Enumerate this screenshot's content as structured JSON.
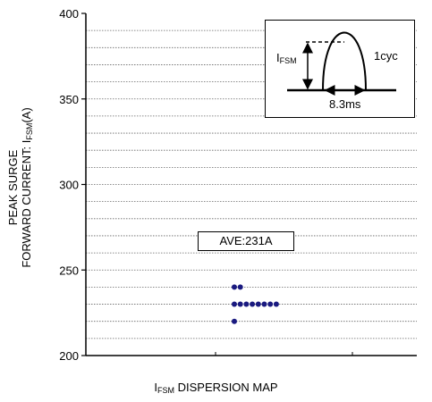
{
  "chart_data": {
    "type": "scatter",
    "title": "",
    "ylabel": {
      "prefix": "PEAK SURGE",
      "line2": "FORWARD CURRENT: I",
      "sub": "FSM",
      "suffix": "(A)"
    },
    "xlabel": {
      "main": "I",
      "sub": "FSM",
      "rest": " DISPERSION MAP"
    },
    "ylim": [
      200,
      400
    ],
    "yticks": [
      200,
      250,
      300,
      350,
      400
    ],
    "ytick_labels": [
      "200",
      "250",
      "300",
      "350",
      "400"
    ],
    "minor_grid_step": 10,
    "grid": true,
    "points": [
      {
        "col": 0,
        "y": 240
      },
      {
        "col": 1,
        "y": 240
      },
      {
        "col": 0,
        "y": 230
      },
      {
        "col": 1,
        "y": 230
      },
      {
        "col": 2,
        "y": 230
      },
      {
        "col": 3,
        "y": 230
      },
      {
        "col": 4,
        "y": 230
      },
      {
        "col": 5,
        "y": 230
      },
      {
        "col": 6,
        "y": 230
      },
      {
        "col": 7,
        "y": 230
      },
      {
        "col": 0,
        "y": 220
      }
    ],
    "annotation": "AVE:231A",
    "marker_color": "#1a1a80"
  },
  "inset": {
    "ifsm_main": "I",
    "ifsm_sub": "FSM",
    "cycle_label": "1cyc",
    "duration_label": "8.3ms"
  }
}
